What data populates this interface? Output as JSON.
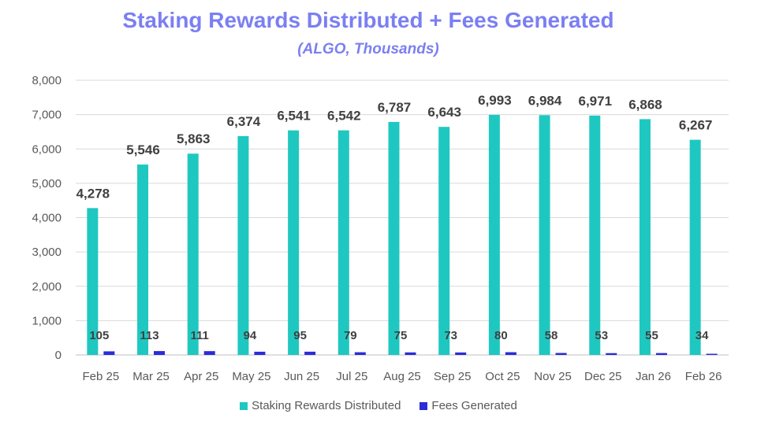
{
  "chart_data": {
    "type": "bar",
    "title": "Staking Rewards Distributed + Fees Generated",
    "subtitle": "(ALGO, Thousands)",
    "categories": [
      "Feb 25",
      "Mar 25",
      "Apr 25",
      "May 25",
      "Jun 25",
      "Jul 25",
      "Aug 25",
      "Sep 25",
      "Oct 25",
      "Nov 25",
      "Dec 25",
      "Jan 26",
      "Feb 26"
    ],
    "series": [
      {
        "name": "Staking Rewards Distributed",
        "color": "#1ec8c1",
        "values": [
          4278,
          5546,
          5863,
          6374,
          6541,
          6542,
          6787,
          6643,
          6993,
          6984,
          6971,
          6868,
          6267
        ],
        "labels": [
          "4,278",
          "5,546",
          "5,863",
          "6,374",
          "6,541",
          "6,542",
          "6,787",
          "6,643",
          "6,993",
          "6,984",
          "6,971",
          "6,868",
          "6,267"
        ]
      },
      {
        "name": "Fees Generated",
        "color": "#2b2bd9",
        "values": [
          105,
          113,
          111,
          94,
          95,
          79,
          75,
          73,
          80,
          58,
          53,
          55,
          34
        ],
        "labels": [
          "105",
          "113",
          "111",
          "94",
          "95",
          "79",
          "75",
          "73",
          "80",
          "58",
          "53",
          "55",
          "34"
        ]
      }
    ],
    "xlabel": "",
    "ylabel": "",
    "ylim": [
      0,
      8000
    ],
    "yticks": [
      0,
      1000,
      2000,
      3000,
      4000,
      5000,
      6000,
      7000,
      8000
    ],
    "ytick_labels": [
      "0",
      "1,000",
      "2,000",
      "3,000",
      "4,000",
      "5,000",
      "6,000",
      "7,000",
      "8,000"
    ],
    "grid": true,
    "legend_position": "bottom"
  }
}
